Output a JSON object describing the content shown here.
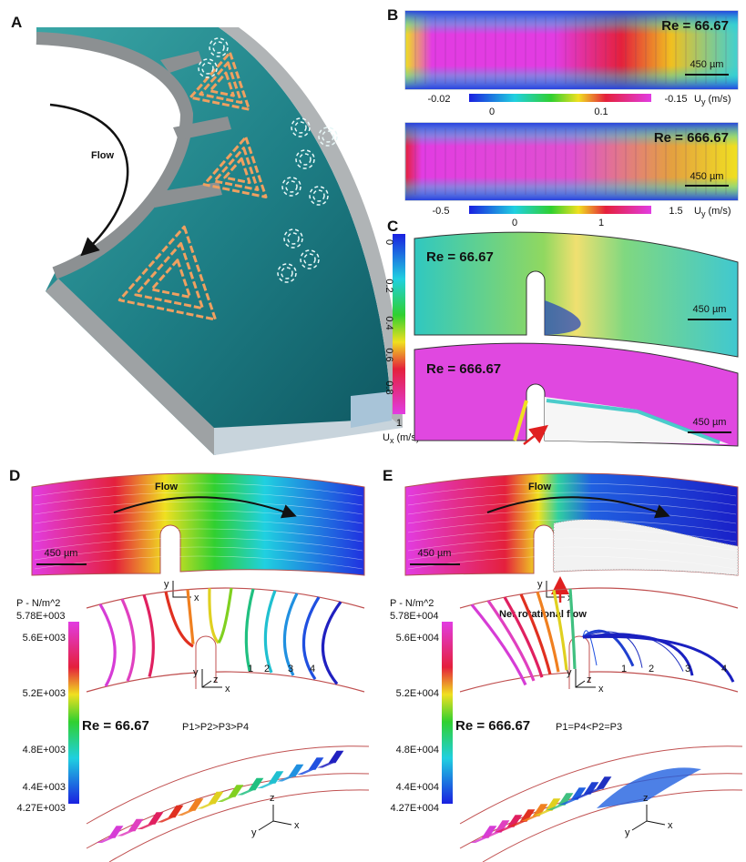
{
  "panel_a": {
    "label": "A",
    "flow": "Flow"
  },
  "panel_b": {
    "label": "B",
    "plots": [
      {
        "re": "Re = 66.67",
        "scale_bar": "450 µm",
        "colorbar": {
          "min": "-0.02",
          "max": "-0.15",
          "mid_ticks": [
            "0",
            "0.1"
          ],
          "symbol": "U",
          "subscript": "y",
          "unit": "(m/s)"
        }
      },
      {
        "re": "Re = 666.67",
        "scale_bar": "450 µm",
        "colorbar": {
          "min": "-0.5",
          "max": "1.5",
          "mid_ticks": [
            "0",
            "1"
          ],
          "symbol": "U",
          "subscript": "y",
          "unit": "(m/s)"
        }
      }
    ]
  },
  "panel_c": {
    "label": "C",
    "plots": [
      {
        "re": "Re = 66.67",
        "scale_bar": "450 µm"
      },
      {
        "re": "Re = 666.67",
        "scale_bar": "450 µm"
      }
    ],
    "colorbar": {
      "ticks": [
        "0",
        "0.2",
        "0.4",
        "0.6",
        "0.8",
        "1"
      ],
      "symbol": "U",
      "subscript": "x",
      "unit": "(m/s)"
    }
  },
  "panel_d": {
    "label": "D",
    "flow": "Flow",
    "scale_bar": "450 µm",
    "axes_top": [
      "y",
      "x"
    ],
    "colorbar": {
      "title": "P - N/m^2",
      "max": "5.78E+003",
      "ticks": [
        "5.6E+003",
        "5.2E+003",
        "4.8E+003",
        "4.4E+003"
      ],
      "min": "4.27E+003"
    },
    "line_labels": [
      "1",
      "2",
      "3",
      "4"
    ],
    "axes_middle": [
      "y",
      "z",
      "x"
    ],
    "re": "Re = 66.67",
    "relation": "P1>P2>P3>P4",
    "axes_bottom": [
      "z",
      "y",
      "x"
    ]
  },
  "panel_e": {
    "label": "E",
    "flow": "Flow",
    "scale_bar": "450 µm",
    "axes_top": [
      "y",
      "x"
    ],
    "annotation": "Net rotational flow",
    "colorbar": {
      "title": "P - N/m^2",
      "max": "5.78E+004",
      "ticks": [
        "5.6E+004",
        "5.2E+004",
        "4.8E+004",
        "4.4E+004"
      ],
      "min": "4.27E+004"
    },
    "line_labels": [
      "1",
      "2",
      "3",
      "4"
    ],
    "axes_middle": [
      "y",
      "z",
      "x"
    ],
    "re": "Re = 666.67",
    "relation": "P1=P4<P2=P3",
    "axes_bottom": [
      "z",
      "y",
      "x"
    ]
  }
}
